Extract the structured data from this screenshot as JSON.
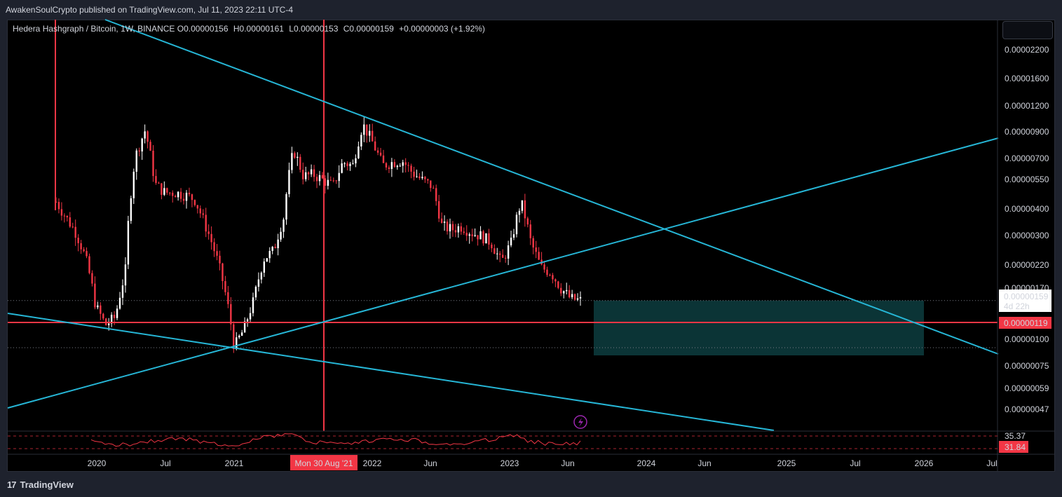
{
  "header": {
    "published": "AwakenSoulCrypto published on TradingView.com, Jul 11, 2023 22:11 UTC-4"
  },
  "legend": {
    "symbol": "Hedera Hashgraph / Bitcoin, 1W, BINANCE",
    "o_label": "O",
    "o_value": "0.00000156",
    "h_label": "H",
    "h_value": "0.00000161",
    "l_label": "L",
    "l_value": "0.00000153",
    "c_label": "C",
    "c_value": "0.00000159",
    "change": "+0.00000003 (+1.92%)"
  },
  "footer": {
    "logo_mark": "17",
    "brand": "TradingView"
  },
  "colors": {
    "background": "#000000",
    "frame": "#1e222d",
    "trendline": "#26b6d6",
    "red_line": "#f23645",
    "candle_up": "#ffffff",
    "candle_down": "#f23645",
    "zone_fill": "#0b3436",
    "rsi": "#f23645",
    "grid_dotted": "#787b86"
  },
  "chart_data": {
    "type": "candlestick",
    "title": "Hedera Hashgraph / Bitcoin, 1W, BINANCE",
    "scale": "log",
    "price_ticks": [
      "0.00002200",
      "0.00001600",
      "0.00001200",
      "0.00000900",
      "0.00000700",
      "0.00000550",
      "0.00000400",
      "0.00000300",
      "0.00000220",
      "0.00000170",
      "0.00000100",
      "0.00000075",
      "0.00000059",
      "0.00000047"
    ],
    "time_ticks": [
      "2020",
      "Jul",
      "2021",
      "2022",
      "Jun",
      "2023",
      "Jun",
      "2024",
      "Jun",
      "2025",
      "Jul",
      "2026",
      "Jul"
    ],
    "current_price": {
      "value": "0.00000159",
      "countdown": "4d 22h"
    },
    "horizontal_level": {
      "value": "0.00000119"
    },
    "crosshair_date": "Mon 30 Aug '21",
    "series_close_approx": [
      4.2,
      3.6,
      3.1,
      2.4,
      1.5,
      1.25,
      1.35,
      2.1,
      6.5,
      8.5,
      5.0,
      4.6,
      4.6,
      4.5,
      4.3,
      3.4,
      2.6,
      1.8,
      1.0,
      1.2,
      1.6,
      2.4,
      2.6,
      3.6,
      7.0,
      5.4,
      5.5,
      5.2,
      4.9,
      6.2,
      6.0,
      9.0,
      7.5,
      6.0,
      6.2,
      6.3,
      5.6,
      5.2,
      4.9,
      3.3,
      3.2,
      3.3,
      3.1,
      3.0,
      2.8,
      2.3,
      2.8,
      4.2,
      2.8,
      2.2,
      2.1,
      1.8,
      1.62,
      1.59
    ],
    "rsi": {
      "upper_label": "35.37",
      "current": "31.84"
    },
    "zone": {
      "from": "Jul 2023",
      "to": "Jan 2026",
      "price_high": "0.00000159",
      "price_low": "0.00000085"
    }
  }
}
